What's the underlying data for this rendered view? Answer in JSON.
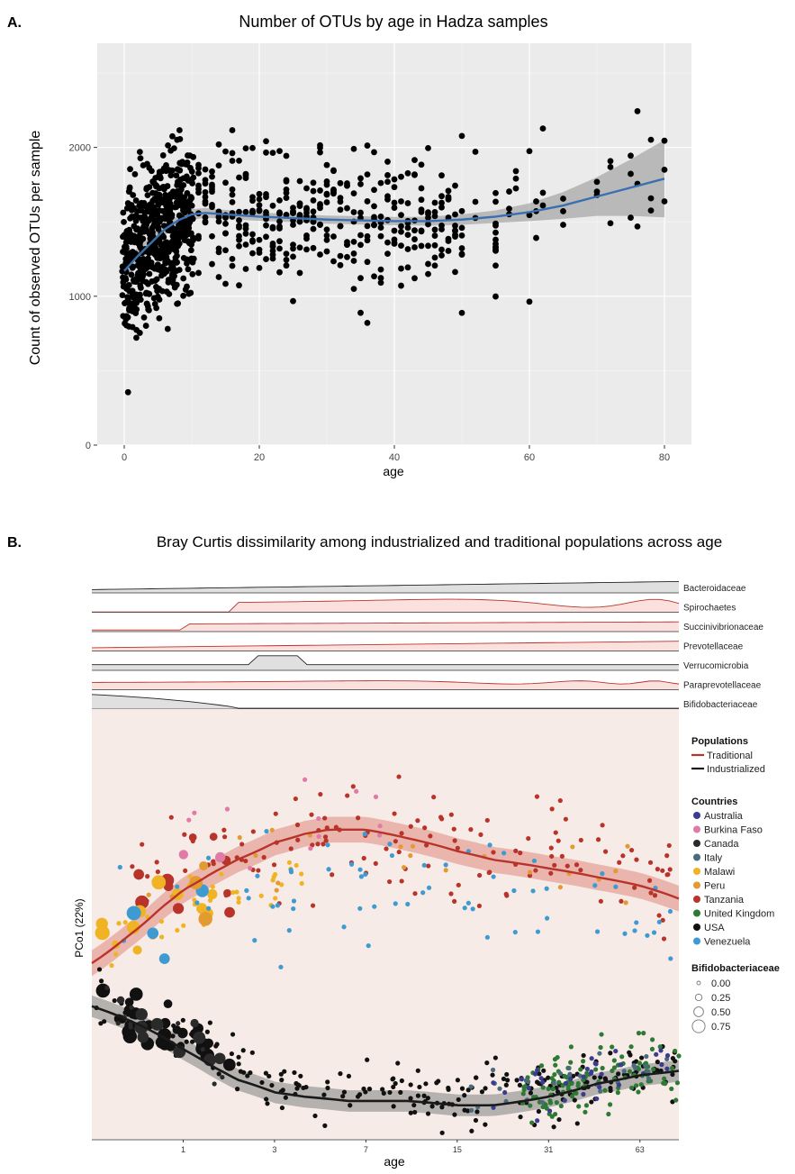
{
  "colors": {
    "panel_bg_a": "#ebebeb",
    "grid_major": "#ffffff",
    "point": "#000000",
    "smooth_line": "#3a6fb0",
    "ci_band": "#9e9e9e",
    "panel_bg_b": "#f6ebe6",
    "traditional": "#b8342a",
    "industrialized": "#1a1a1a",
    "ribbon_grey_fill": "#e0e0e0",
    "ribbon_red_fill": "#fbe1de"
  },
  "chart_data": [
    {
      "type": "scatter",
      "panel_label": "A.",
      "title": "Number of OTUs by age in Hadza samples",
      "xlabel": "age",
      "ylabel": "Count of observed OTUs per sample",
      "xlim": [
        -4,
        84
      ],
      "ylim": [
        0,
        2700
      ],
      "xticks": [
        0,
        20,
        40,
        60,
        80
      ],
      "yticks": [
        0,
        1000,
        2000
      ],
      "grid": true,
      "smooth": {
        "x": [
          0,
          2,
          4,
          6,
          8,
          10,
          12,
          15,
          20,
          25,
          30,
          35,
          40,
          45,
          50,
          55,
          60,
          65,
          70,
          75,
          80
        ],
        "y": [
          1170,
          1270,
          1360,
          1450,
          1510,
          1550,
          1560,
          1550,
          1535,
          1525,
          1515,
          1510,
          1505,
          1505,
          1515,
          1535,
          1565,
          1610,
          1670,
          1730,
          1790
        ],
        "ci": [
          70,
          55,
          45,
          40,
          35,
          35,
          33,
          30,
          28,
          27,
          27,
          28,
          28,
          30,
          35,
          42,
          60,
          90,
          130,
          190,
          260
        ]
      }
    },
    {
      "type": "scatter",
      "panel_label": "B.",
      "title": "Bray Curtis dissimilarity among industrialized and traditional populations across age",
      "xlabel": "age",
      "ylabel": "PCo1 (22%)",
      "xscale": "log(1+age)",
      "xticks": [
        1,
        3,
        7,
        15,
        31,
        63
      ],
      "ylim": [
        0,
        1
      ],
      "families": [
        "Bacteroidaceae",
        "Spirochaetes",
        "Succinivibrionaceae",
        "Prevotellaceae",
        "Verrucomicrobia",
        "Paraprevotellaceae",
        "Bifidobacteriaceae"
      ],
      "populations_legend": {
        "title": "Populations",
        "entries": [
          {
            "name": "Traditional",
            "color": "#b8342a"
          },
          {
            "name": "Industrialized",
            "color": "#1a1a1a"
          }
        ]
      },
      "countries_legend": {
        "title": "Countries",
        "entries": [
          {
            "name": "Australia",
            "color": "#3b3b8f"
          },
          {
            "name": "Burkina Faso",
            "color": "#e07ba8"
          },
          {
            "name": "Canada",
            "color": "#2a2a2a"
          },
          {
            "name": "Italy",
            "color": "#4a6b7e"
          },
          {
            "name": "Malawi",
            "color": "#f0b323"
          },
          {
            "name": "Peru",
            "color": "#e39a30"
          },
          {
            "name": "Tanzania",
            "color": "#b8342a"
          },
          {
            "name": "United Kingdom",
            "color": "#2e7a34"
          },
          {
            "name": "USA",
            "color": "#111111"
          },
          {
            "name": "Venezuela",
            "color": "#3e9bd1"
          }
        ]
      },
      "size_legend": {
        "title": "Bifidobacteriaceae",
        "values": [
          "0.00",
          "0.25",
          "0.50",
          "0.75"
        ]
      },
      "traditional_curve": {
        "age": [
          0,
          0.3,
          0.7,
          1,
          1.5,
          2,
          3,
          4,
          5,
          6,
          7,
          10,
          15,
          20,
          31,
          45,
          63,
          85
        ],
        "pco1": [
          0.41,
          0.47,
          0.54,
          0.58,
          0.62,
          0.65,
          0.69,
          0.71,
          0.72,
          0.72,
          0.72,
          0.7,
          0.67,
          0.65,
          0.63,
          0.61,
          0.59,
          0.56
        ]
      },
      "industrialized_curve": {
        "age": [
          0,
          0.3,
          0.7,
          1,
          1.5,
          2,
          3,
          4,
          6,
          10,
          15,
          20,
          31,
          45,
          63,
          85
        ],
        "pco1": [
          0.31,
          0.28,
          0.24,
          0.21,
          0.17,
          0.14,
          0.11,
          0.1,
          0.09,
          0.09,
          0.08,
          0.08,
          0.1,
          0.13,
          0.15,
          0.16
        ]
      }
    }
  ]
}
